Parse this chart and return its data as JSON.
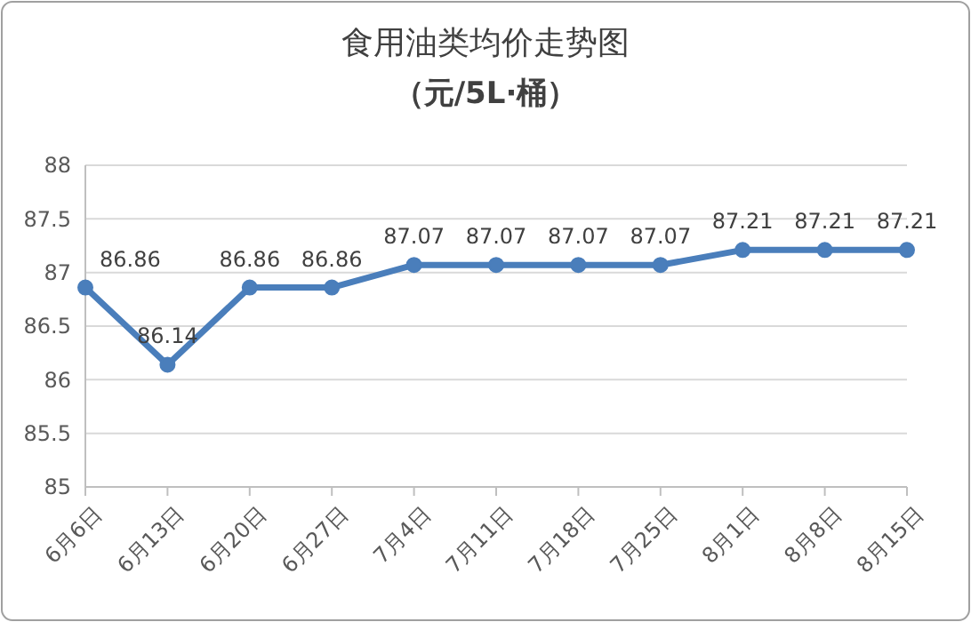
{
  "chart_data": {
    "type": "line",
    "title": "食用油类均价走势图",
    "subtitle": "（元/5L·桶）",
    "categories": [
      "6月6日",
      "6月13日",
      "6月20日",
      "6月27日",
      "7月4日",
      "7月11日",
      "7月18日",
      "7月25日",
      "8月1日",
      "8月8日",
      "8月15日"
    ],
    "series": [
      {
        "color": "#4a7ebb",
        "values": [
          86.86,
          86.14,
          86.86,
          86.86,
          87.07,
          87.07,
          87.07,
          87.07,
          87.21,
          87.21,
          87.21
        ]
      }
    ],
    "ylim": [
      85,
      88
    ],
    "yticks": [
      85,
      85.5,
      86,
      86.5,
      87,
      87.5,
      88
    ],
    "grid": "y",
    "marker": "circle",
    "line_style": "solid",
    "data_labels": true
  }
}
